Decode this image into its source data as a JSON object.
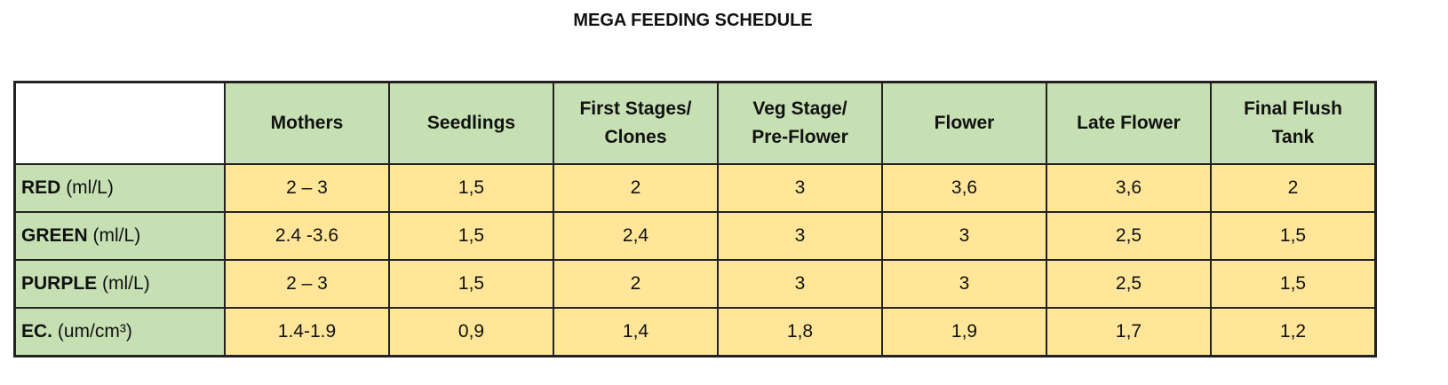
{
  "title": "MEGA FEEDING SCHEDULE",
  "columns": [
    [
      "Mothers"
    ],
    [
      "Seedlings"
    ],
    [
      "First Stages/",
      "Clones"
    ],
    [
      "Veg Stage/",
      "Pre-Flower"
    ],
    [
      "Flower"
    ],
    [
      "Late Flower"
    ],
    [
      "Final Flush",
      "Tank"
    ]
  ],
  "rows": [
    {
      "name": "RED",
      "unit": "(ml/L)",
      "values": [
        "2 – 3",
        "1,5",
        "2",
        "3",
        "3,6",
        "3,6",
        "2"
      ]
    },
    {
      "name": "GREEN",
      "unit": "(ml/L)",
      "values": [
        "2.4 -3.6",
        "1,5",
        "2,4",
        "3",
        "3",
        "2,5",
        "1,5"
      ]
    },
    {
      "name": "PURPLE",
      "unit": "(ml/L)",
      "values": [
        "2 – 3",
        "1,5",
        "2",
        "3",
        "3",
        "2,5",
        "1,5"
      ]
    },
    {
      "name": "EC.",
      "unit": "(um/cm³)",
      "values": [
        "1.4-1.9",
        "0,9",
        "1,4",
        "1,8",
        "1,9",
        "1,7",
        "1,2"
      ]
    }
  ],
  "colors": {
    "header": "#c6e0b4",
    "cell": "#ffe699"
  }
}
